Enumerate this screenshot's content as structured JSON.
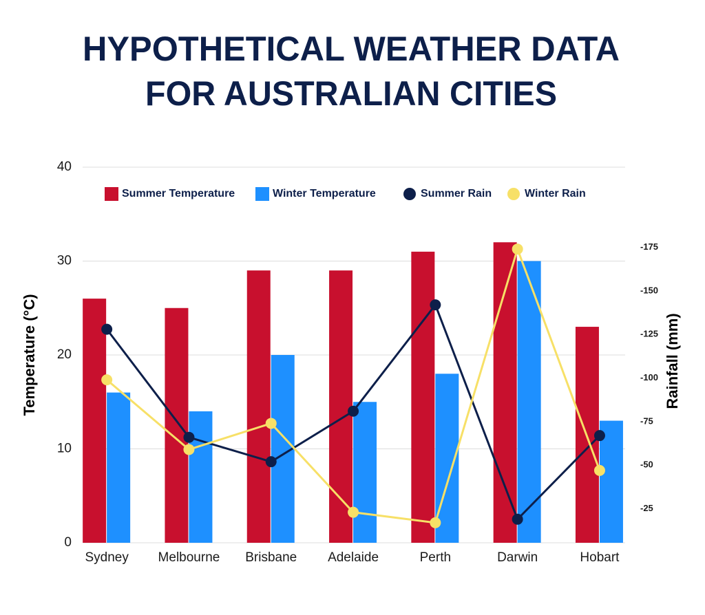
{
  "chart_data": {
    "type": "bar",
    "title": [
      "HYPOTHETICAL WEATHER DATA",
      "FOR AUSTRALIAN CITIES"
    ],
    "y_label": "Temperature (°C)",
    "y2_label": "Rainfall (mm)",
    "categories": [
      "Sydney",
      "Melbourne",
      "Brisbane",
      "Adelaide",
      "Perth",
      "Darwin",
      "Hobart"
    ],
    "series": [
      {
        "name": "Summer Temperature",
        "type": "bar",
        "color": "#c8102e",
        "values": [
          26,
          25,
          29,
          29,
          31,
          32,
          23
        ]
      },
      {
        "name": "Winter Temperature",
        "type": "bar",
        "color": "#1e90ff",
        "values": [
          16,
          14,
          20,
          15,
          18,
          30,
          13
        ]
      },
      {
        "name": "Summer Rain",
        "type": "line",
        "axis": "y2",
        "color": "#0d1f4a",
        "values": [
          128,
          66,
          52,
          81,
          142,
          19,
          67
        ]
      },
      {
        "name": "Winter Rain",
        "type": "line",
        "axis": "y2",
        "color": "#f7e067",
        "values": [
          99,
          59,
          74,
          23,
          17,
          174,
          47
        ]
      }
    ],
    "ylim": [
      0,
      40
    ],
    "yticks": [
      0,
      10,
      20,
      30,
      40
    ],
    "y2lim": [
      5.5,
      221
    ],
    "y2ticks": [
      {
        "value": 25,
        "label": "-25"
      },
      {
        "value": 50,
        "label": "-50"
      },
      {
        "value": 75,
        "label": "-75"
      },
      {
        "value": 100,
        "label": "-100"
      },
      {
        "value": 125,
        "label": "-125"
      },
      {
        "value": 150,
        "label": "-150"
      },
      {
        "value": 175,
        "label": "-175"
      }
    ],
    "grid": true,
    "legend": "top"
  }
}
